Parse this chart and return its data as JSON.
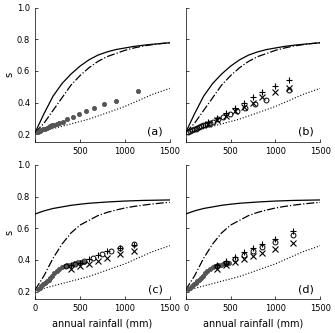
{
  "xlim": [
    0,
    1500
  ],
  "ylim": [
    0.15,
    1.0
  ],
  "xlabel": "annual rainfall (mm)",
  "ylabel": "s",
  "panel_labels": [
    "(a)",
    "(b)",
    "(c)",
    "(d)"
  ],
  "xticks": [
    0,
    500,
    1000,
    1500
  ],
  "yticks": [
    0.2,
    0.4,
    0.6,
    0.8,
    1.0
  ],
  "curves_ab": {
    "solid": {
      "x": [
        0,
        50,
        100,
        200,
        300,
        400,
        500,
        600,
        700,
        800,
        900,
        1000,
        1100,
        1200,
        1300,
        1400,
        1500
      ],
      "y": [
        0.21,
        0.27,
        0.33,
        0.44,
        0.52,
        0.58,
        0.63,
        0.67,
        0.7,
        0.72,
        0.735,
        0.745,
        0.755,
        0.762,
        0.768,
        0.773,
        0.778
      ]
    },
    "dashdot": {
      "x": [
        0,
        50,
        100,
        150,
        200,
        250,
        300,
        350,
        400,
        450,
        500,
        600,
        700,
        800,
        900,
        1000,
        1100,
        1200,
        1300,
        1400,
        1500
      ],
      "y": [
        0.21,
        0.24,
        0.27,
        0.31,
        0.35,
        0.39,
        0.43,
        0.47,
        0.51,
        0.54,
        0.57,
        0.62,
        0.66,
        0.69,
        0.71,
        0.73,
        0.745,
        0.757,
        0.766,
        0.773,
        0.778
      ]
    },
    "dotted": {
      "x": [
        0,
        100,
        200,
        300,
        400,
        500,
        600,
        700,
        800,
        900,
        1000,
        1100,
        1200,
        1300,
        1400,
        1500
      ],
      "y": [
        0.21,
        0.22,
        0.235,
        0.25,
        0.265,
        0.28,
        0.295,
        0.315,
        0.335,
        0.355,
        0.375,
        0.4,
        0.425,
        0.45,
        0.47,
        0.49
      ]
    }
  },
  "curves_cd": {
    "solid": {
      "x": [
        0,
        100,
        200,
        300,
        400,
        500,
        600,
        700,
        800,
        900,
        1000,
        1100,
        1200,
        1300,
        1400,
        1500
      ],
      "y": [
        0.69,
        0.71,
        0.725,
        0.735,
        0.745,
        0.752,
        0.758,
        0.762,
        0.766,
        0.769,
        0.772,
        0.774,
        0.776,
        0.777,
        0.778,
        0.779
      ]
    },
    "dashdot": {
      "x": [
        0,
        100,
        200,
        300,
        400,
        500,
        600,
        700,
        800,
        900,
        1000,
        1100,
        1200,
        1300,
        1400,
        1500
      ],
      "y": [
        0.21,
        0.3,
        0.41,
        0.5,
        0.57,
        0.62,
        0.65,
        0.68,
        0.7,
        0.715,
        0.728,
        0.738,
        0.746,
        0.753,
        0.759,
        0.764
      ]
    },
    "dotted": {
      "x": [
        0,
        100,
        200,
        300,
        400,
        500,
        600,
        700,
        800,
        900,
        1000,
        1100,
        1200,
        1300,
        1400,
        1500
      ],
      "y": [
        0.21,
        0.22,
        0.235,
        0.25,
        0.265,
        0.28,
        0.295,
        0.315,
        0.335,
        0.355,
        0.375,
        0.4,
        0.425,
        0.45,
        0.47,
        0.49
      ]
    }
  },
  "scatter_a_filled": {
    "x": [
      30,
      50,
      70,
      90,
      110,
      130,
      150,
      170,
      190,
      210,
      240,
      270,
      310,
      360,
      420,
      490,
      570,
      660,
      770,
      900,
      1150
    ],
    "y": [
      0.215,
      0.22,
      0.225,
      0.23,
      0.235,
      0.24,
      0.245,
      0.25,
      0.255,
      0.26,
      0.265,
      0.27,
      0.28,
      0.295,
      0.31,
      0.325,
      0.345,
      0.365,
      0.39,
      0.41,
      0.475
    ]
  },
  "scatter_b_circle": {
    "x": [
      30,
      50,
      70,
      90,
      110,
      130,
      150,
      170,
      190,
      210,
      240,
      270,
      310,
      360,
      420,
      490,
      570,
      660,
      770,
      900,
      1150
    ],
    "y": [
      0.215,
      0.22,
      0.225,
      0.23,
      0.235,
      0.24,
      0.245,
      0.25,
      0.255,
      0.26,
      0.265,
      0.27,
      0.28,
      0.295,
      0.31,
      0.325,
      0.345,
      0.365,
      0.39,
      0.415,
      0.48
    ]
  },
  "scatter_b_plus": {
    "x": [
      250,
      350,
      450,
      550,
      650,
      750,
      850,
      1000,
      1150
    ],
    "y": [
      0.275,
      0.305,
      0.335,
      0.365,
      0.4,
      0.435,
      0.465,
      0.505,
      0.545
    ]
  },
  "scatter_b_cross": {
    "x": [
      250,
      350,
      450,
      550,
      650,
      750,
      850,
      1000,
      1150
    ],
    "y": [
      0.265,
      0.29,
      0.315,
      0.345,
      0.37,
      0.4,
      0.435,
      0.465,
      0.495
    ]
  },
  "scatter_c_filled_dense": {
    "x": [
      30,
      50,
      70,
      90,
      110,
      130,
      150,
      170,
      190,
      210,
      240,
      270,
      300,
      330,
      360,
      390,
      420,
      450,
      480,
      510,
      550
    ],
    "y": [
      0.215,
      0.225,
      0.235,
      0.245,
      0.255,
      0.265,
      0.275,
      0.285,
      0.3,
      0.315,
      0.33,
      0.345,
      0.355,
      0.36,
      0.365,
      0.37,
      0.375,
      0.38,
      0.385,
      0.385,
      0.385
    ]
  },
  "scatter_c_circle": {
    "x": [
      350,
      450,
      550,
      650,
      750,
      850,
      950,
      1100
    ],
    "y": [
      0.36,
      0.375,
      0.395,
      0.415,
      0.435,
      0.455,
      0.475,
      0.5
    ]
  },
  "scatter_c_plus": {
    "x": [
      400,
      500,
      600,
      700,
      800,
      950,
      1100
    ],
    "y": [
      0.365,
      0.38,
      0.405,
      0.43,
      0.455,
      0.475,
      0.495
    ]
  },
  "scatter_c_cross": {
    "x": [
      400,
      500,
      600,
      700,
      800,
      950,
      1100
    ],
    "y": [
      0.345,
      0.36,
      0.375,
      0.395,
      0.415,
      0.44,
      0.455
    ]
  },
  "scatter_d_filled_dense": {
    "x": [
      30,
      50,
      70,
      90,
      110,
      130,
      150,
      170,
      190,
      210,
      240,
      270,
      300,
      330,
      360,
      390,
      420,
      450,
      480
    ],
    "y": [
      0.215,
      0.225,
      0.235,
      0.245,
      0.255,
      0.265,
      0.275,
      0.285,
      0.3,
      0.315,
      0.33,
      0.345,
      0.355,
      0.36,
      0.365,
      0.37,
      0.373,
      0.376,
      0.378
    ]
  },
  "scatter_d_circle": {
    "x": [
      350,
      450,
      550,
      650,
      750,
      850,
      1000,
      1200
    ],
    "y": [
      0.36,
      0.38,
      0.405,
      0.43,
      0.455,
      0.48,
      0.51,
      0.555
    ]
  },
  "scatter_d_plus": {
    "x": [
      350,
      450,
      550,
      650,
      750,
      850,
      1000,
      1200
    ],
    "y": [
      0.37,
      0.395,
      0.42,
      0.45,
      0.475,
      0.5,
      0.535,
      0.585
    ]
  },
  "scatter_d_cross": {
    "x": [
      350,
      450,
      550,
      650,
      750,
      850,
      1000,
      1200
    ],
    "y": [
      0.345,
      0.365,
      0.385,
      0.405,
      0.425,
      0.445,
      0.47,
      0.505
    ]
  },
  "line_color": "#000000",
  "bg_color": "#ffffff",
  "tick_fontsize": 6,
  "label_fontsize": 7,
  "panel_label_fontsize": 8
}
